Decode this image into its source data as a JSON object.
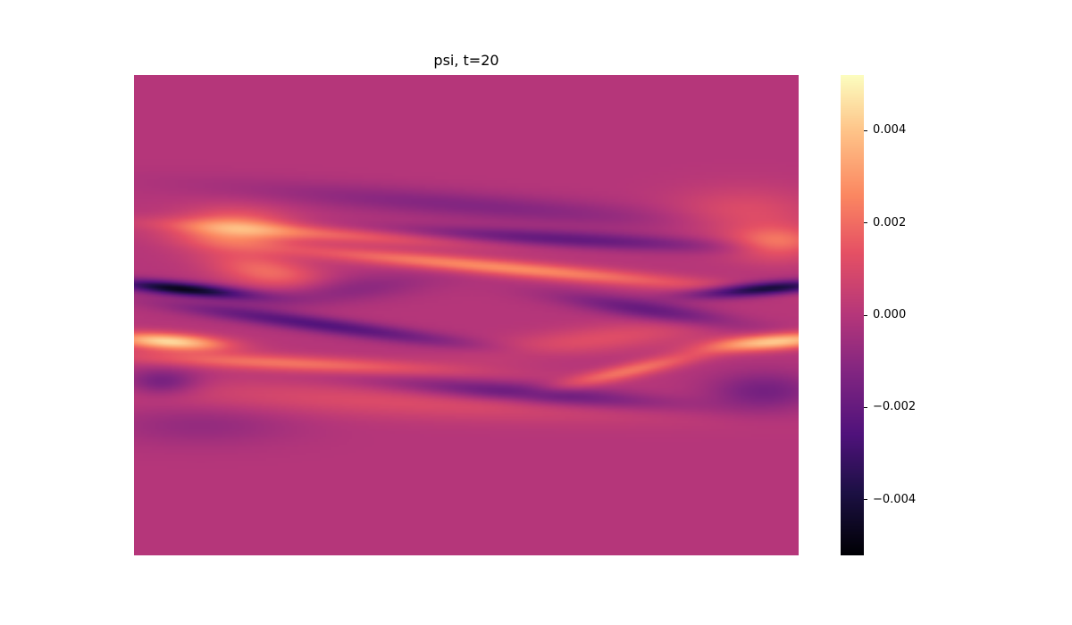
{
  "chart_data": {
    "type": "heatmap",
    "title": "psi, t=20",
    "colormap": "magma",
    "axes_visible": false,
    "value_range": [
      -0.0052,
      0.0052
    ],
    "colorbar": {
      "ticks": [
        {
          "value": 0.004,
          "label": "0.004"
        },
        {
          "value": 0.002,
          "label": "0.002"
        },
        {
          "value": 0.0,
          "label": "0.000"
        },
        {
          "value": -0.002,
          "label": "−0.002"
        },
        {
          "value": -0.004,
          "label": "−0.004"
        }
      ]
    },
    "features": [
      {
        "cx": 0.05,
        "cy": 0.555,
        "sx": 0.06,
        "sy": 0.012,
        "amp": 0.0045,
        "slope": 0.08
      },
      {
        "cx": 0.97,
        "cy": 0.555,
        "sx": 0.07,
        "sy": 0.012,
        "amp": 0.0042,
        "slope": -0.1
      },
      {
        "cx": 0.07,
        "cy": 0.445,
        "sx": 0.07,
        "sy": 0.01,
        "amp": -0.0048,
        "slope": 0.12
      },
      {
        "cx": 0.95,
        "cy": 0.445,
        "sx": 0.07,
        "sy": 0.01,
        "amp": -0.0046,
        "slope": -0.1
      },
      {
        "cx": 0.55,
        "cy": 0.4,
        "sx": 0.22,
        "sy": 0.012,
        "amp": 0.0028,
        "slope": 0.12
      },
      {
        "cx": 0.3,
        "cy": 0.33,
        "sx": 0.18,
        "sy": 0.012,
        "amp": 0.0022,
        "slope": 0.08
      },
      {
        "cx": 0.62,
        "cy": 0.34,
        "sx": 0.2,
        "sy": 0.013,
        "amp": -0.0022,
        "slope": 0.06
      },
      {
        "cx": 0.15,
        "cy": 0.32,
        "sx": 0.06,
        "sy": 0.03,
        "amp": 0.0025,
        "slope": 0.0
      },
      {
        "cx": 0.97,
        "cy": 0.35,
        "sx": 0.05,
        "sy": 0.025,
        "amp": 0.0022,
        "slope": 0.0
      },
      {
        "cx": 0.92,
        "cy": 0.29,
        "sx": 0.08,
        "sy": 0.04,
        "amp": 0.0012,
        "slope": 0.0
      },
      {
        "cx": 0.28,
        "cy": 0.52,
        "sx": 0.15,
        "sy": 0.012,
        "amp": -0.0025,
        "slope": 0.18
      },
      {
        "cx": 0.22,
        "cy": 0.6,
        "sx": 0.18,
        "sy": 0.012,
        "amp": 0.0022,
        "slope": 0.06
      },
      {
        "cx": 0.6,
        "cy": 0.665,
        "sx": 0.15,
        "sy": 0.015,
        "amp": -0.0024,
        "slope": 0.1
      },
      {
        "cx": 0.75,
        "cy": 0.615,
        "sx": 0.08,
        "sy": 0.012,
        "amp": 0.0022,
        "slope": -0.3
      },
      {
        "cx": 0.4,
        "cy": 0.68,
        "sx": 0.3,
        "sy": 0.025,
        "amp": 0.0011,
        "slope": 0.05
      },
      {
        "cx": 0.04,
        "cy": 0.64,
        "sx": 0.04,
        "sy": 0.02,
        "amp": -0.0018,
        "slope": 0.0
      },
      {
        "cx": 0.95,
        "cy": 0.66,
        "sx": 0.06,
        "sy": 0.03,
        "amp": -0.0016,
        "slope": 0.0
      },
      {
        "cx": 0.5,
        "cy": 0.27,
        "sx": 0.25,
        "sy": 0.02,
        "amp": -0.0012,
        "slope": 0.1
      },
      {
        "cx": 0.2,
        "cy": 0.41,
        "sx": 0.06,
        "sy": 0.025,
        "amp": 0.002,
        "slope": 0.2
      },
      {
        "cx": 0.78,
        "cy": 0.49,
        "sx": 0.1,
        "sy": 0.015,
        "amp": -0.002,
        "slope": 0.2
      },
      {
        "cx": 0.3,
        "cy": 0.45,
        "sx": 0.1,
        "sy": 0.02,
        "amp": -0.0012,
        "slope": -0.15
      },
      {
        "cx": 0.7,
        "cy": 0.55,
        "sx": 0.12,
        "sy": 0.02,
        "amp": 0.0012,
        "slope": -0.15
      },
      {
        "cx": 0.1,
        "cy": 0.73,
        "sx": 0.1,
        "sy": 0.03,
        "amp": -0.0008,
        "slope": 0.0
      }
    ]
  }
}
